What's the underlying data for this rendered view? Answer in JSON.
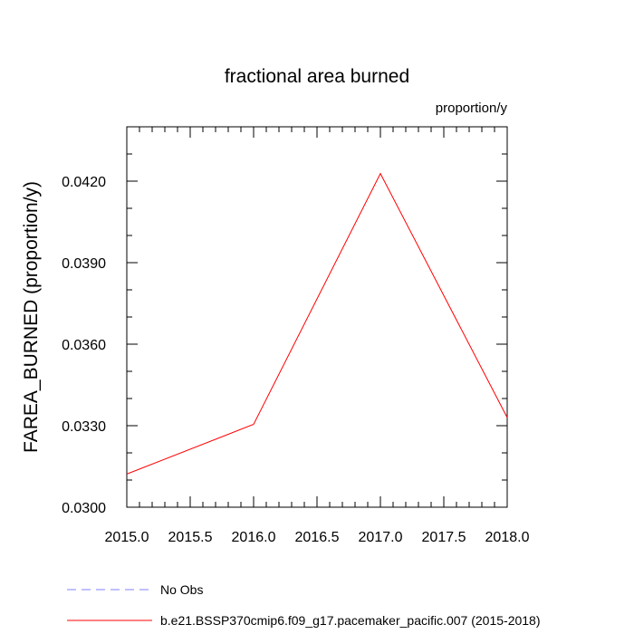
{
  "chart_data": {
    "type": "line",
    "title": "fractional area burned",
    "units": "proportion/y",
    "xlabel": "",
    "ylabel": "FAREA_BURNED  (proportion/y)",
    "xlim": [
      2015.0,
      2018.0
    ],
    "ylim": [
      0.03,
      0.044
    ],
    "xticks": [
      "2015.0",
      "2015.5",
      "2016.0",
      "2016.5",
      "2017.0",
      "2017.5",
      "2018.0"
    ],
    "yticks": [
      "0.0300",
      "0.0330",
      "0.0360",
      "0.0390",
      "0.0420"
    ],
    "grid": false,
    "legend_position": "bottom",
    "series": [
      {
        "name": "b.e21.BSSP370cmip6.f09_g17.pacemaker_pacific.007 (2015-2018)",
        "color": "#ff0000",
        "style": "solid",
        "x": [
          2015,
          2016,
          2017,
          2018
        ],
        "y": [
          0.03122,
          0.03305,
          0.04228,
          0.0333
        ]
      }
    ],
    "legend": [
      {
        "label": "No Obs",
        "color": "#8080ff",
        "style": "dashed"
      },
      {
        "label": "b.e21.BSSP370cmip6.f09_g17.pacemaker_pacific.007 (2015-2018)",
        "color": "#ff0000",
        "style": "solid"
      }
    ]
  }
}
